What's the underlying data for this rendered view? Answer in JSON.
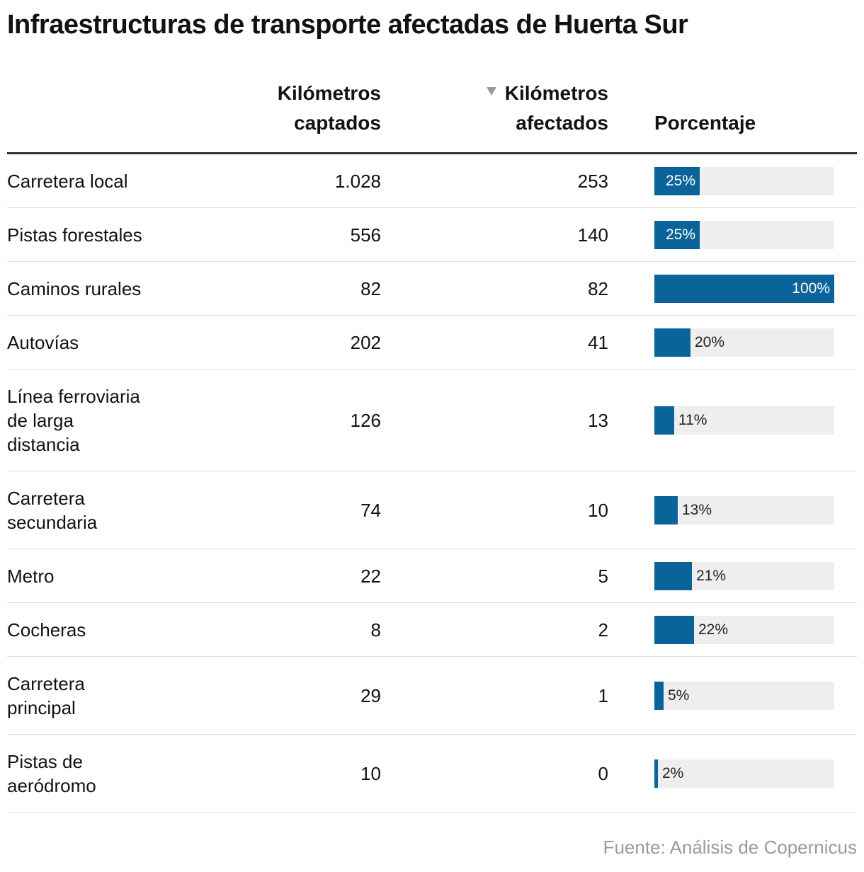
{
  "title": "Infraestructuras de transporte afectadas de Huerta Sur",
  "source": "Fuente: Análisis de Copernicus",
  "colors": {
    "bar": "#0a6399",
    "track": "#eeeeee",
    "sort_icon": "#9a9a9a"
  },
  "headers": {
    "captados": [
      "Kilómetros",
      "captados"
    ],
    "afectados": [
      "Kilómetros",
      "afectados"
    ],
    "porcentaje": "Porcentaje",
    "sort_icon": "triangle-down-icon"
  },
  "chart_data": {
    "type": "table",
    "title": "Infraestructuras de transporte afectadas de Huerta Sur",
    "columns": [
      "",
      "Kilómetros captados",
      "Kilómetros afectados",
      "Porcentaje"
    ],
    "sorted_by": "Kilómetros afectados",
    "rows": [
      {
        "name": [
          "Carretera local"
        ],
        "captados": "1.028",
        "afectados": "253",
        "pct": 25,
        "pct_label": "25%"
      },
      {
        "name": [
          "Pistas forestales"
        ],
        "captados": "556",
        "afectados": "140",
        "pct": 25,
        "pct_label": "25%"
      },
      {
        "name": [
          "Caminos rurales"
        ],
        "captados": "82",
        "afectados": "82",
        "pct": 100,
        "pct_label": "100%"
      },
      {
        "name": [
          "Autovías"
        ],
        "captados": "202",
        "afectados": "41",
        "pct": 20,
        "pct_label": "20%"
      },
      {
        "name": [
          "Línea ferroviaria",
          "de larga",
          "distancia"
        ],
        "captados": "126",
        "afectados": "13",
        "pct": 11,
        "pct_label": "11%"
      },
      {
        "name": [
          "Carretera",
          "secundaria"
        ],
        "captados": "74",
        "afectados": "10",
        "pct": 13,
        "pct_label": "13%"
      },
      {
        "name": [
          "Metro"
        ],
        "captados": "22",
        "afectados": "5",
        "pct": 21,
        "pct_label": "21%"
      },
      {
        "name": [
          "Cocheras"
        ],
        "captados": "8",
        "afectados": "2",
        "pct": 22,
        "pct_label": "22%"
      },
      {
        "name": [
          "Carretera",
          "principal"
        ],
        "captados": "29",
        "afectados": "1",
        "pct": 5,
        "pct_label": "5%"
      },
      {
        "name": [
          "Pistas de",
          "aeródromo"
        ],
        "captados": "10",
        "afectados": "0",
        "pct": 2,
        "pct_label": "2%"
      }
    ]
  }
}
